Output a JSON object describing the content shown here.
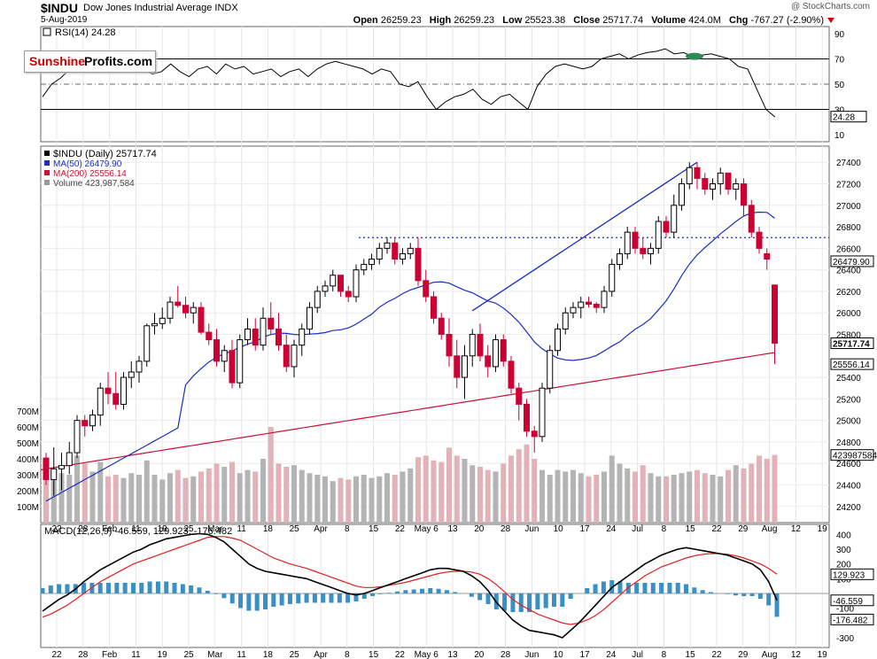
{
  "header": {
    "symbol": "$INDU",
    "name": "Dow Jones Industrial Average  INDX",
    "date": "5-Aug-2019",
    "watermark": "@ StockCharts.com",
    "open_label": "Open",
    "open": "26259.23",
    "high_label": "High",
    "high": "26259.23",
    "low_label": "Low",
    "low": "25523.38",
    "close_label": "Close",
    "close": "25717.74",
    "volume_label": "Volume",
    "volume": "424.0M",
    "chg_label": "Chg",
    "chg": "-767.27 (-2.90%)"
  },
  "logo": {
    "part1": "Sunshine",
    "part2": "Profits.com"
  },
  "colors": {
    "up": "#000000",
    "down": "#cc0033",
    "ma50": "#1a2ebf",
    "ma200": "#cc1133",
    "rsi": "#000000",
    "rsi_fill": "#2e8b57",
    "vol_up": "#b4b4b4",
    "vol_down": "#e3b1b8",
    "macd": "#000000",
    "signal": "#e02020",
    "hist": "#3a8fc4",
    "trend": "#1a2ebf"
  },
  "x_labels": [
    "22",
    "28",
    "Feb",
    "11",
    "19",
    "25",
    "Mar",
    "11",
    "18",
    "25",
    "Apr",
    "8",
    "15",
    "22",
    "May 6",
    "13",
    "20",
    "28",
    "Jun",
    "10",
    "17",
    "24",
    "Jul",
    "8",
    "15",
    "22",
    "29",
    "Aug",
    "12",
    "19"
  ],
  "rsi": {
    "legend": "RSI(14) 24.28",
    "ticks": [
      "90",
      "70",
      "50",
      "30",
      "10"
    ],
    "value_tag": "24.28",
    "values": [
      40,
      50,
      55,
      62,
      68,
      72,
      70,
      74,
      70,
      72,
      68,
      62,
      58,
      60,
      66,
      60,
      56,
      62,
      64,
      58,
      66,
      62,
      64,
      58,
      60,
      62,
      56,
      60,
      62,
      56,
      62,
      66,
      68,
      66,
      64,
      62,
      58,
      62,
      60,
      50,
      48,
      52,
      40,
      30,
      36,
      40,
      42,
      46,
      38,
      34,
      40,
      42,
      36,
      30,
      48,
      58,
      64,
      66,
      64,
      62,
      64,
      70,
      72,
      74,
      70,
      73,
      75,
      76,
      78,
      74,
      75,
      72,
      73,
      74,
      72,
      70,
      64,
      62,
      46,
      30,
      24
    ]
  },
  "price": {
    "legend_main": "$INDU (Daily) 25717.74",
    "legend_ma50": "MA(50) 26479.90",
    "legend_ma200": "MA(200) 25556.14",
    "legend_vol": "Volume 423,987,584",
    "ticks": [
      "27400",
      "27200",
      "27000",
      "26800",
      "26600",
      "26400",
      "26200",
      "26000",
      "25800",
      "25400",
      "25200",
      "25000",
      "24800",
      "24600",
      "24400",
      "24200"
    ],
    "tag_ma50": "26479.90",
    "tag_close": "25717.74",
    "tag_ma200": "25556.14",
    "tag_vol": "423987584",
    "vol_ticks": [
      "700M",
      "600M",
      "500M",
      "400M",
      "300M",
      "200M",
      "100M"
    ],
    "resistance": 26700,
    "trendline": [
      [
        55,
        26020
      ],
      [
        84,
        27400
      ]
    ]
  },
  "chart_data": [
    {
      "type": "candlestick",
      "title": "$INDU (Daily) 25717.74",
      "ylim": [
        24050,
        27550
      ],
      "note": "daily bars Jan 22 2019 - Aug 5 2019; columns o,h,l,c,volume(M)",
      "ohlcv": [
        [
          24650,
          24700,
          24400,
          24450,
          350
        ],
        [
          24450,
          24750,
          24300,
          24550,
          330
        ],
        [
          24550,
          24700,
          24350,
          24580,
          310
        ],
        [
          24580,
          24800,
          24500,
          24700,
          300
        ],
        [
          24700,
          25050,
          24650,
          25000,
          420
        ],
        [
          25000,
          25050,
          24850,
          24950,
          370
        ],
        [
          24950,
          25100,
          24900,
          25050,
          320
        ],
        [
          25050,
          25350,
          24950,
          25300,
          380
        ],
        [
          25300,
          25450,
          25150,
          25250,
          290
        ],
        [
          25250,
          25450,
          25100,
          25150,
          300
        ],
        [
          25150,
          25450,
          25100,
          25400,
          280
        ],
        [
          25400,
          25550,
          25300,
          25450,
          310
        ],
        [
          25450,
          25600,
          25350,
          25550,
          300
        ],
        [
          25550,
          25900,
          25500,
          25880,
          390
        ],
        [
          25880,
          26000,
          25800,
          25900,
          300
        ],
        [
          25900,
          26050,
          25850,
          25950,
          270
        ],
        [
          25950,
          26150,
          25900,
          26100,
          310
        ],
        [
          26100,
          26250,
          26050,
          26070,
          330
        ],
        [
          26070,
          26150,
          25950,
          26000,
          280
        ],
        [
          26000,
          26100,
          25900,
          26050,
          290
        ],
        [
          26050,
          26100,
          25800,
          25820,
          320
        ],
        [
          25820,
          25900,
          25700,
          25750,
          340
        ],
        [
          25750,
          25850,
          25500,
          25550,
          370
        ],
        [
          25550,
          25700,
          25450,
          25650,
          350
        ],
        [
          25650,
          25750,
          25300,
          25350,
          380
        ],
        [
          25350,
          25800,
          25300,
          25750,
          310
        ],
        [
          25750,
          25950,
          25700,
          25850,
          330
        ],
        [
          25850,
          25950,
          25650,
          25700,
          320
        ],
        [
          25700,
          26050,
          25650,
          25950,
          400
        ],
        [
          25950,
          26100,
          25800,
          25850,
          600
        ],
        [
          25850,
          26000,
          25650,
          25700,
          370
        ],
        [
          25700,
          25800,
          25450,
          25500,
          350
        ],
        [
          25500,
          25750,
          25400,
          25700,
          360
        ],
        [
          25700,
          25900,
          25600,
          25850,
          330
        ],
        [
          25850,
          26100,
          25800,
          26050,
          310
        ],
        [
          26050,
          26250,
          26000,
          26200,
          300
        ],
        [
          26200,
          26300,
          26150,
          26250,
          290
        ],
        [
          26250,
          26400,
          26200,
          26350,
          260
        ],
        [
          26350,
          26350,
          26150,
          26200,
          280
        ],
        [
          26200,
          26250,
          26100,
          26150,
          270
        ],
        [
          26150,
          26450,
          26100,
          26400,
          290
        ],
        [
          26400,
          26500,
          26350,
          26450,
          300
        ],
        [
          26450,
          26550,
          26400,
          26500,
          280
        ],
        [
          26500,
          26650,
          26450,
          26600,
          290
        ],
        [
          26600,
          26700,
          26550,
          26650,
          310
        ],
        [
          26650,
          26700,
          26450,
          26500,
          300
        ],
        [
          26500,
          26600,
          26450,
          26550,
          320
        ],
        [
          26550,
          26650,
          26500,
          26600,
          340
        ],
        [
          26600,
          26700,
          26250,
          26300,
          410
        ],
        [
          26300,
          26400,
          26100,
          26150,
          420
        ],
        [
          26150,
          26200,
          25900,
          25950,
          390
        ],
        [
          25950,
          26000,
          25750,
          25800,
          380
        ],
        [
          25800,
          25950,
          25500,
          25600,
          470
        ],
        [
          25600,
          25750,
          25300,
          25400,
          420
        ],
        [
          25400,
          25700,
          25200,
          25600,
          400
        ],
        [
          25600,
          25850,
          25500,
          25800,
          360
        ],
        [
          25800,
          25900,
          25550,
          25600,
          350
        ],
        [
          25600,
          25700,
          25400,
          25500,
          330
        ],
        [
          25500,
          25800,
          25450,
          25750,
          320
        ],
        [
          25750,
          25800,
          25500,
          25550,
          370
        ],
        [
          25550,
          25600,
          25250,
          25300,
          420
        ],
        [
          25300,
          25350,
          25000,
          25150,
          460
        ],
        [
          25150,
          25200,
          24850,
          24900,
          490
        ],
        [
          24900,
          24950,
          24700,
          24850,
          400
        ],
        [
          24850,
          25350,
          24800,
          25300,
          330
        ],
        [
          25300,
          25700,
          25250,
          25650,
          300
        ],
        [
          25650,
          25900,
          25600,
          25850,
          330
        ],
        [
          25850,
          26050,
          25800,
          26000,
          320
        ],
        [
          26000,
          26100,
          25950,
          26050,
          330
        ],
        [
          26050,
          26150,
          25950,
          26100,
          310
        ],
        [
          26100,
          26150,
          26050,
          26080,
          290
        ],
        [
          26080,
          26100,
          26000,
          26050,
          300
        ],
        [
          26050,
          26250,
          26000,
          26200,
          320
        ],
        [
          26200,
          26500,
          26150,
          26450,
          420
        ],
        [
          26450,
          26600,
          26400,
          26550,
          370
        ],
        [
          26550,
          26800,
          26500,
          26750,
          340
        ],
        [
          26750,
          26800,
          26550,
          26600,
          320
        ],
        [
          26600,
          26700,
          26500,
          26550,
          360
        ],
        [
          26550,
          26650,
          26450,
          26600,
          310
        ],
        [
          26600,
          26900,
          26550,
          26850,
          290
        ],
        [
          26850,
          26900,
          26700,
          26750,
          290
        ],
        [
          26750,
          27100,
          26700,
          27000,
          300
        ],
        [
          27000,
          27250,
          26950,
          27200,
          310
        ],
        [
          27200,
          27400,
          27150,
          27350,
          320
        ],
        [
          27350,
          27400,
          27150,
          27250,
          330
        ],
        [
          27250,
          27300,
          27100,
          27150,
          310
        ],
        [
          27150,
          27250,
          27050,
          27200,
          300
        ],
        [
          27200,
          27350,
          27100,
          27300,
          290
        ],
        [
          27300,
          27300,
          27100,
          27150,
          330
        ],
        [
          27150,
          27250,
          27050,
          27200,
          360
        ],
        [
          27200,
          27250,
          26900,
          27000,
          340
        ],
        [
          27000,
          27050,
          26700,
          26750,
          370
        ],
        [
          26750,
          26800,
          26550,
          26600,
          420
        ],
        [
          26550,
          26600,
          26400,
          26500,
          400
        ],
        [
          26259,
          26259,
          25523,
          25718,
          424
        ]
      ]
    },
    {
      "type": "line",
      "title": "MACD(12,26,9) -46.559, 129.923, -176.482",
      "ylim": [
        -330,
        420
      ],
      "ticks": [
        "400",
        "300",
        "200",
        "100",
        "-100",
        "-300"
      ],
      "tags": {
        "signal": "129.923",
        "macd": "-46.559",
        "hist": "-176.482"
      },
      "macd_start": [
        -120,
        -80,
        -40,
        -10,
        30,
        80,
        120,
        160,
        190,
        220,
        250,
        280,
        300,
        330,
        350,
        370,
        380,
        390,
        400,
        405,
        400,
        380,
        350,
        300,
        250,
        200,
        170,
        150,
        140,
        130,
        120,
        110,
        100,
        80,
        60,
        40,
        20,
        0,
        -10,
        0,
        20,
        40,
        60,
        80,
        100,
        120,
        140,
        160,
        170,
        170,
        160,
        150,
        120,
        80,
        20,
        -60,
        -120,
        -180,
        -220,
        -250,
        -260,
        -270,
        -280,
        -300,
        -250,
        -200,
        -140,
        -80,
        -20,
        40,
        80,
        120,
        160,
        200,
        230,
        260,
        280,
        300,
        310,
        300,
        290,
        280,
        270,
        260,
        240,
        220,
        200,
        160,
        80,
        -46
      ],
      "signal_start": [
        -160,
        -140,
        -110,
        -80,
        -40,
        0,
        40,
        80,
        110,
        140,
        170,
        200,
        220,
        240,
        260,
        280,
        300,
        320,
        340,
        360,
        380,
        385,
        385,
        375,
        360,
        330,
        300,
        270,
        240,
        220,
        200,
        185,
        170,
        150,
        130,
        110,
        90,
        70,
        50,
        40,
        40,
        45,
        55,
        65,
        75,
        90,
        105,
        120,
        135,
        145,
        150,
        150,
        145,
        130,
        100,
        60,
        10,
        -40,
        -80,
        -110,
        -140,
        -160,
        -180,
        -200,
        -210,
        -200,
        -180,
        -150,
        -110,
        -60,
        -10,
        40,
        80,
        120,
        150,
        180,
        200,
        220,
        240,
        255,
        265,
        270,
        270,
        265,
        255,
        240,
        220,
        200,
        170,
        130
      ]
    }
  ]
}
